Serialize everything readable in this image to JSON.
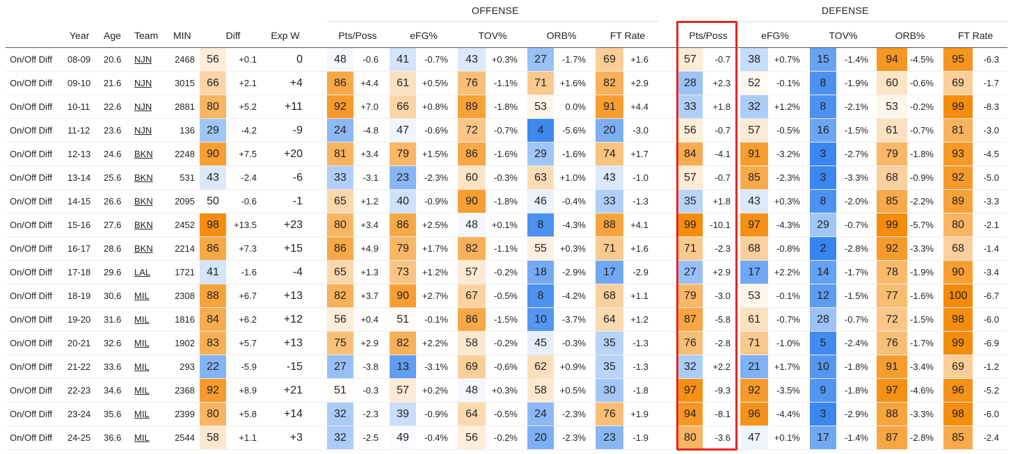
{
  "groups": {
    "offense": "OFFENSE",
    "defense": "DEFENSE"
  },
  "headers": {
    "year": "Year",
    "age": "Age",
    "team": "Team",
    "min": "MIN",
    "diff": "Diff",
    "expw": "Exp W",
    "off_pts": "Pts/Poss",
    "off_efg": "eFG%",
    "off_tov": "TOV%",
    "off_orb": "ORB%",
    "off_ft": "FT Rate",
    "def_pts": "Pts/Poss",
    "def_efg": "eFG%",
    "def_tov": "TOV%",
    "def_orb": "ORB%",
    "def_ft": "FT Rate"
  },
  "highlight_color": "#e8251e",
  "scale_colors": {
    "low_blue": "#2f80ed",
    "mid_white": "#ffffff",
    "high_orange": "#f58a07"
  },
  "rows": [
    {
      "label": "On/Off Diff",
      "year": "08-09",
      "age": "20.6",
      "team": "NJN",
      "min": "2468",
      "diff_pct": "56",
      "diff": "+0.1",
      "expw": "0",
      "off_pts_pct": "48",
      "off_pts": "-0.6",
      "off_efg_pct": "41",
      "off_efg": "-0.7%",
      "off_tov_pct": "43",
      "off_tov": "+0.3%",
      "off_orb_pct": "27",
      "off_orb": "-1.7%",
      "off_ft_pct": "69",
      "off_ft": "+1.6",
      "def_pts_pct": "57",
      "def_pts": "-0.7",
      "def_efg_pct": "38",
      "def_efg": "+0.7%",
      "def_tov_pct": "15",
      "def_tov": "-1.4%",
      "def_orb_pct": "94",
      "def_orb": "-4.5%",
      "def_ft_pct": "95",
      "def_ft": "-6.3"
    },
    {
      "label": "On/Off Diff",
      "year": "09-10",
      "age": "21.6",
      "team": "NJN",
      "min": "3015",
      "diff_pct": "66",
      "diff": "+2.1",
      "expw": "+4",
      "off_pts_pct": "86",
      "off_pts": "+4.4",
      "off_efg_pct": "61",
      "off_efg": "+0.5%",
      "off_tov_pct": "76",
      "off_tov": "-1.1%",
      "off_orb_pct": "71",
      "off_orb": "+1.6%",
      "off_ft_pct": "82",
      "off_ft": "+2.9",
      "def_pts_pct": "28",
      "def_pts": "+2.3",
      "def_efg_pct": "52",
      "def_efg": "-0.1%",
      "def_tov_pct": "8",
      "def_tov": "-1.9%",
      "def_orb_pct": "60",
      "def_orb": "-0.6%",
      "def_ft_pct": "69",
      "def_ft": "-1.7"
    },
    {
      "label": "On/Off Diff",
      "year": "10-11",
      "age": "22.6",
      "team": "NJN",
      "min": "2881",
      "diff_pct": "80",
      "diff": "+5.2",
      "expw": "+11",
      "off_pts_pct": "92",
      "off_pts": "+7.0",
      "off_efg_pct": "66",
      "off_efg": "+0.8%",
      "off_tov_pct": "89",
      "off_tov": "-1.8%",
      "off_orb_pct": "53",
      "off_orb": "0.0%",
      "off_ft_pct": "91",
      "off_ft": "+4.4",
      "def_pts_pct": "33",
      "def_pts": "+1.8",
      "def_efg_pct": "32",
      "def_efg": "+1.2%",
      "def_tov_pct": "8",
      "def_tov": "-2.1%",
      "def_orb_pct": "53",
      "def_orb": "-0.2%",
      "def_ft_pct": "99",
      "def_ft": "-8.3"
    },
    {
      "label": "On/Off Diff",
      "year": "11-12",
      "age": "23.6",
      "team": "NJN",
      "min": "136",
      "diff_pct": "29",
      "diff": "-4.2",
      "expw": "-9",
      "off_pts_pct": "24",
      "off_pts": "-4.8",
      "off_efg_pct": "47",
      "off_efg": "-0.6%",
      "off_tov_pct": "72",
      "off_tov": "-0.7%",
      "off_orb_pct": "4",
      "off_orb": "-5.6%",
      "off_ft_pct": "20",
      "off_ft": "-3.0",
      "def_pts_pct": "56",
      "def_pts": "-0.7",
      "def_efg_pct": "57",
      "def_efg": "-0.5%",
      "def_tov_pct": "16",
      "def_tov": "-1.5%",
      "def_orb_pct": "61",
      "def_orb": "-0.7%",
      "def_ft_pct": "81",
      "def_ft": "-3.0"
    },
    {
      "label": "On/Off Diff",
      "year": "12-13",
      "age": "24.6",
      "team": "BKN",
      "min": "2248",
      "diff_pct": "90",
      "diff": "+7.5",
      "expw": "+20",
      "off_pts_pct": "81",
      "off_pts": "+3.4",
      "off_efg_pct": "79",
      "off_efg": "+1.5%",
      "off_tov_pct": "86",
      "off_tov": "-1.6%",
      "off_orb_pct": "29",
      "off_orb": "-1.6%",
      "off_ft_pct": "74",
      "off_ft": "+1.7",
      "def_pts_pct": "84",
      "def_pts": "-4.1",
      "def_efg_pct": "91",
      "def_efg": "-3.2%",
      "def_tov_pct": "3",
      "def_tov": "-2.7%",
      "def_orb_pct": "79",
      "def_orb": "-1.8%",
      "def_ft_pct": "93",
      "def_ft": "-4.5"
    },
    {
      "label": "On/Off Diff",
      "year": "13-14",
      "age": "25.6",
      "team": "BKN",
      "min": "531",
      "diff_pct": "43",
      "diff": "-2.4",
      "expw": "-6",
      "off_pts_pct": "33",
      "off_pts": "-3.1",
      "off_efg_pct": "23",
      "off_efg": "-2.3%",
      "off_tov_pct": "60",
      "off_tov": "-0.3%",
      "off_orb_pct": "63",
      "off_orb": "+1.0%",
      "off_ft_pct": "43",
      "off_ft": "-1.0",
      "def_pts_pct": "57",
      "def_pts": "-0.7",
      "def_efg_pct": "85",
      "def_efg": "-2.3%",
      "def_tov_pct": "3",
      "def_tov": "-3.3%",
      "def_orb_pct": "68",
      "def_orb": "-0.9%",
      "def_ft_pct": "92",
      "def_ft": "-5.0"
    },
    {
      "label": "On/Off Diff",
      "year": "14-15",
      "age": "26.6",
      "team": "BKN",
      "min": "2095",
      "diff_pct": "50",
      "diff": "-0.6",
      "expw": "-1",
      "off_pts_pct": "65",
      "off_pts": "+1.2",
      "off_efg_pct": "40",
      "off_efg": "-0.9%",
      "off_tov_pct": "90",
      "off_tov": "-1.8%",
      "off_orb_pct": "46",
      "off_orb": "-0.4%",
      "off_ft_pct": "33",
      "off_ft": "-1.3",
      "def_pts_pct": "35",
      "def_pts": "+1.8",
      "def_efg_pct": "43",
      "def_efg": "+0.3%",
      "def_tov_pct": "8",
      "def_tov": "-2.0%",
      "def_orb_pct": "85",
      "def_orb": "-2.2%",
      "def_ft_pct": "89",
      "def_ft": "-3.3"
    },
    {
      "label": "On/Off Diff",
      "year": "15-16",
      "age": "27.6",
      "team": "BKN",
      "min": "2452",
      "diff_pct": "98",
      "diff": "+13.5",
      "expw": "+23",
      "off_pts_pct": "80",
      "off_pts": "+3.4",
      "off_efg_pct": "86",
      "off_efg": "+2.5%",
      "off_tov_pct": "48",
      "off_tov": "+0.1%",
      "off_orb_pct": "8",
      "off_orb": "-4.3%",
      "off_ft_pct": "88",
      "off_ft": "+4.1",
      "def_pts_pct": "99",
      "def_pts": "-10.1",
      "def_efg_pct": "97",
      "def_efg": "-4.3%",
      "def_tov_pct": "29",
      "def_tov": "-0.7%",
      "def_orb_pct": "99",
      "def_orb": "-5.7%",
      "def_ft_pct": "80",
      "def_ft": "-2.1"
    },
    {
      "label": "On/Off Diff",
      "year": "16-17",
      "age": "28.6",
      "team": "BKN",
      "min": "2214",
      "diff_pct": "86",
      "diff": "+7.3",
      "expw": "+15",
      "off_pts_pct": "86",
      "off_pts": "+4.9",
      "off_efg_pct": "79",
      "off_efg": "+1.7%",
      "off_tov_pct": "82",
      "off_tov": "-1.1%",
      "off_orb_pct": "55",
      "off_orb": "+0.3%",
      "off_ft_pct": "71",
      "off_ft": "+1.6",
      "def_pts_pct": "71",
      "def_pts": "-2.3",
      "def_efg_pct": "68",
      "def_efg": "-0.8%",
      "def_tov_pct": "2",
      "def_tov": "-2.8%",
      "def_orb_pct": "92",
      "def_orb": "-3.3%",
      "def_ft_pct": "68",
      "def_ft": "-1.4"
    },
    {
      "label": "On/Off Diff",
      "year": "17-18",
      "age": "29.6",
      "team": "LAL",
      "min": "1721",
      "diff_pct": "41",
      "diff": "-1.6",
      "expw": "-4",
      "off_pts_pct": "65",
      "off_pts": "+1.3",
      "off_efg_pct": "73",
      "off_efg": "+1.2%",
      "off_tov_pct": "57",
      "off_tov": "-0.2%",
      "off_orb_pct": "18",
      "off_orb": "-2.9%",
      "off_ft_pct": "17",
      "off_ft": "-2.9",
      "def_pts_pct": "27",
      "def_pts": "+2.9",
      "def_efg_pct": "17",
      "def_efg": "+2.2%",
      "def_tov_pct": "14",
      "def_tov": "-1.7%",
      "def_orb_pct": "78",
      "def_orb": "-1.9%",
      "def_ft_pct": "90",
      "def_ft": "-3.4"
    },
    {
      "label": "On/Off Diff",
      "year": "18-19",
      "age": "30.6",
      "team": "MIL",
      "min": "2308",
      "diff_pct": "88",
      "diff": "+6.7",
      "expw": "+13",
      "off_pts_pct": "82",
      "off_pts": "+3.7",
      "off_efg_pct": "90",
      "off_efg": "+2.7%",
      "off_tov_pct": "67",
      "off_tov": "-0.5%",
      "off_orb_pct": "8",
      "off_orb": "-4.2%",
      "off_ft_pct": "68",
      "off_ft": "+1.1",
      "def_pts_pct": "79",
      "def_pts": "-3.0",
      "def_efg_pct": "53",
      "def_efg": "-0.1%",
      "def_tov_pct": "12",
      "def_tov": "-1.5%",
      "def_orb_pct": "77",
      "def_orb": "-1.6%",
      "def_ft_pct": "100",
      "def_ft": "-6.7"
    },
    {
      "label": "On/Off Diff",
      "year": "19-20",
      "age": "31.6",
      "team": "MIL",
      "min": "1816",
      "diff_pct": "84",
      "diff": "+6.2",
      "expw": "+12",
      "off_pts_pct": "56",
      "off_pts": "+0.4",
      "off_efg_pct": "51",
      "off_efg": "-0.1%",
      "off_tov_pct": "86",
      "off_tov": "-1.5%",
      "off_orb_pct": "10",
      "off_orb": "-3.7%",
      "off_ft_pct": "64",
      "off_ft": "+1.2",
      "def_pts_pct": "87",
      "def_pts": "-5.8",
      "def_efg_pct": "61",
      "def_efg": "-0.7%",
      "def_tov_pct": "28",
      "def_tov": "-0.7%",
      "def_orb_pct": "72",
      "def_orb": "-1.5%",
      "def_ft_pct": "98",
      "def_ft": "-6.0"
    },
    {
      "label": "On/Off Diff",
      "year": "20-21",
      "age": "32.6",
      "team": "MIL",
      "min": "1902",
      "diff_pct": "83",
      "diff": "+5.7",
      "expw": "+13",
      "off_pts_pct": "75",
      "off_pts": "+2.9",
      "off_efg_pct": "82",
      "off_efg": "+2.2%",
      "off_tov_pct": "58",
      "off_tov": "-0.2%",
      "off_orb_pct": "45",
      "off_orb": "-0.3%",
      "off_ft_pct": "35",
      "off_ft": "-1.3",
      "def_pts_pct": "76",
      "def_pts": "-2.8",
      "def_efg_pct": "71",
      "def_efg": "-1.0%",
      "def_tov_pct": "5",
      "def_tov": "-2.4%",
      "def_orb_pct": "76",
      "def_orb": "-1.7%",
      "def_ft_pct": "99",
      "def_ft": "-6.9"
    },
    {
      "label": "On/Off Diff",
      "year": "21-22",
      "age": "33.6",
      "team": "MIL",
      "min": "293",
      "diff_pct": "22",
      "diff": "-5.9",
      "expw": "-15",
      "off_pts_pct": "27",
      "off_pts": "-3.8",
      "off_efg_pct": "13",
      "off_efg": "-3.1%",
      "off_tov_pct": "69",
      "off_tov": "-0.6%",
      "off_orb_pct": "62",
      "off_orb": "+0.9%",
      "off_ft_pct": "35",
      "off_ft": "-1.3",
      "def_pts_pct": "32",
      "def_pts": "+2.2",
      "def_efg_pct": "21",
      "def_efg": "+1.7%",
      "def_tov_pct": "10",
      "def_tov": "-1.8%",
      "def_orb_pct": "91",
      "def_orb": "-3.4%",
      "def_ft_pct": "69",
      "def_ft": "-1.2"
    },
    {
      "label": "On/Off Diff",
      "year": "22-23",
      "age": "34.6",
      "team": "MIL",
      "min": "2368",
      "diff_pct": "92",
      "diff": "+8.9",
      "expw": "+21",
      "off_pts_pct": "51",
      "off_pts": "-0.3",
      "off_efg_pct": "57",
      "off_efg": "+0.2%",
      "off_tov_pct": "48",
      "off_tov": "+0.3%",
      "off_orb_pct": "58",
      "off_orb": "+0.5%",
      "off_ft_pct": "30",
      "off_ft": "-1.8",
      "def_pts_pct": "97",
      "def_pts": "-9.3",
      "def_efg_pct": "92",
      "def_efg": "-3.5%",
      "def_tov_pct": "9",
      "def_tov": "-1.8%",
      "def_orb_pct": "97",
      "def_orb": "-4.6%",
      "def_ft_pct": "96",
      "def_ft": "-5.2"
    },
    {
      "label": "On/Off Diff",
      "year": "23-24",
      "age": "35.6",
      "team": "MIL",
      "min": "2399",
      "diff_pct": "80",
      "diff": "+5.8",
      "expw": "+14",
      "off_pts_pct": "32",
      "off_pts": "-2.3",
      "off_efg_pct": "39",
      "off_efg": "-0.9%",
      "off_tov_pct": "64",
      "off_tov": "-0.5%",
      "off_orb_pct": "24",
      "off_orb": "-2.3%",
      "off_ft_pct": "76",
      "off_ft": "+1.9",
      "def_pts_pct": "94",
      "def_pts": "-8.1",
      "def_efg_pct": "96",
      "def_efg": "-4.4%",
      "def_tov_pct": "3",
      "def_tov": "-2.9%",
      "def_orb_pct": "88",
      "def_orb": "-3.3%",
      "def_ft_pct": "98",
      "def_ft": "-6.0"
    },
    {
      "label": "On/Off Diff",
      "year": "24-25",
      "age": "36.6",
      "team": "MIL",
      "min": "2544",
      "diff_pct": "58",
      "diff": "+1.1",
      "expw": "+3",
      "off_pts_pct": "32",
      "off_pts": "-2.5",
      "off_efg_pct": "49",
      "off_efg": "-0.4%",
      "off_tov_pct": "56",
      "off_tov": "-0.2%",
      "off_orb_pct": "20",
      "off_orb": "-2.3%",
      "off_ft_pct": "23",
      "off_ft": "-1.9",
      "def_pts_pct": "80",
      "def_pts": "-3.6",
      "def_efg_pct": "47",
      "def_efg": "+0.1%",
      "def_tov_pct": "17",
      "def_tov": "-1.4%",
      "def_orb_pct": "87",
      "def_orb": "-2.8%",
      "def_ft_pct": "85",
      "def_ft": "-2.4"
    }
  ]
}
